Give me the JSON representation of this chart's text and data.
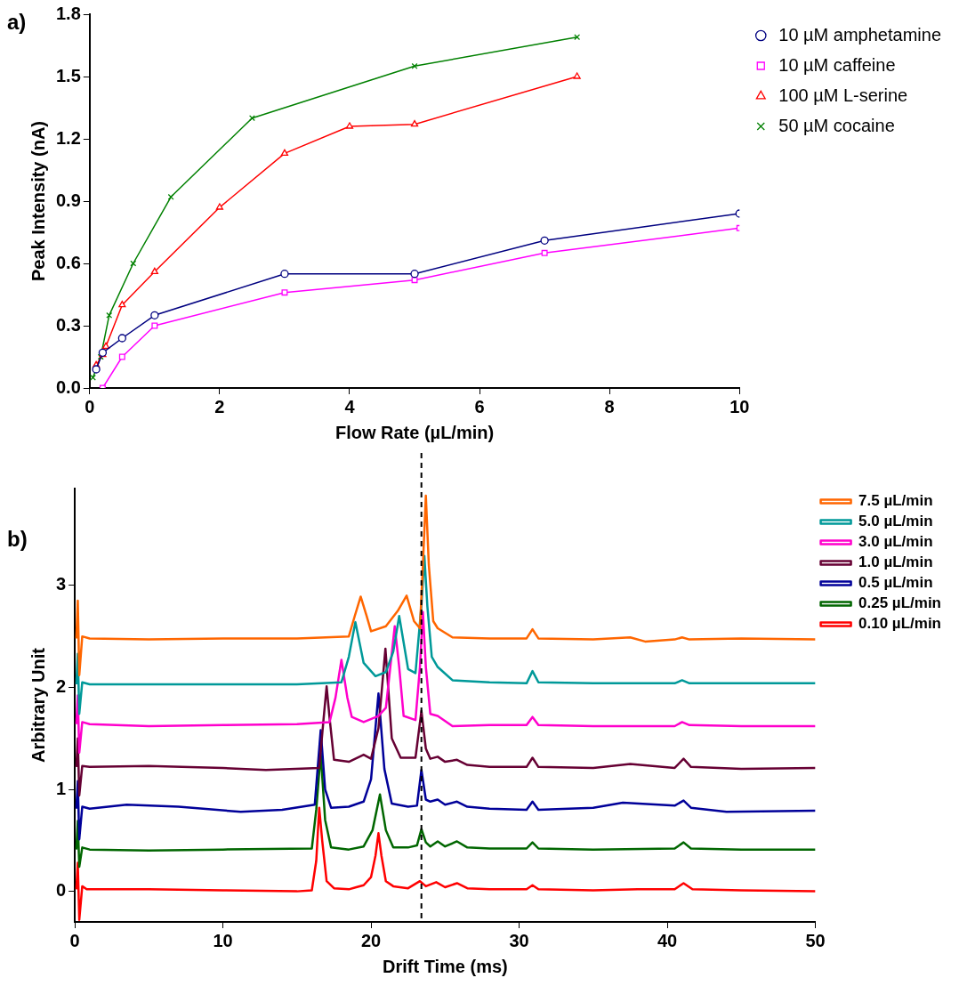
{
  "chart_data": [
    {
      "type": "line",
      "title": "a)",
      "xlabel": "Flow Rate (µL/min)",
      "ylabel": "Peak Intensity (nA)",
      "xlim": [
        0,
        10
      ],
      "ylim": [
        0,
        1.8
      ],
      "xticks": [
        0,
        2,
        4,
        6,
        8,
        10
      ],
      "yticks": [
        {
          "value": 0,
          "label": "0.0"
        },
        {
          "value": 0.3,
          "label": "0.3"
        },
        {
          "value": 0.6,
          "label": "0.6"
        },
        {
          "value": 0.9,
          "label": "0.9"
        },
        {
          "value": 1.2,
          "label": "1.2"
        },
        {
          "value": 1.5,
          "label": "1.5"
        },
        {
          "value": 1.8,
          "label": "1.8"
        }
      ],
      "grid": false,
      "legend": "top right",
      "line_style": "solid",
      "series": [
        {
          "name": "10 µM amphetamine",
          "color": "#000080",
          "marker": "circle",
          "x": [
            0.1,
            0.2,
            0.5,
            1,
            3,
            5,
            7,
            10
          ],
          "values": [
            0.09,
            0.17,
            0.24,
            0.35,
            0.55,
            0.55,
            0.71,
            0.84
          ]
        },
        {
          "name": "10 µM caffeine",
          "color": "#ff00ff",
          "marker": "square",
          "x": [
            0.2,
            0.5,
            1,
            3,
            5,
            7,
            10
          ],
          "values": [
            0,
            0.15,
            0.3,
            0.46,
            0.52,
            0.65,
            0.77
          ]
        },
        {
          "name": "100 µM L-serine",
          "color": "#ff0000",
          "marker": "triangle",
          "x": [
            0.1,
            0.2,
            0.25,
            0.5,
            1,
            2,
            3,
            4,
            5,
            7.5
          ],
          "values": [
            0.11,
            0.16,
            0.2,
            0.4,
            0.56,
            0.87,
            1.13,
            1.26,
            1.27,
            1.5
          ]
        },
        {
          "name": "50 µM cocaine",
          "color": "#008000",
          "marker": "cross",
          "x": [
            0.05,
            0.17,
            0.3,
            0.67,
            1.25,
            2.5,
            5,
            7.5
          ],
          "values": [
            0.05,
            0.15,
            0.35,
            0.6,
            0.92,
            1.3,
            1.55,
            1.69
          ]
        }
      ]
    },
    {
      "type": "line",
      "title": "b)",
      "xlabel": "Drift Time (ms)",
      "ylabel": "Arbitrary Unit",
      "xlim": [
        0,
        50
      ],
      "ylim": [
        -0.3,
        3.95
      ],
      "xticks": [
        0,
        10,
        20,
        30,
        40,
        50
      ],
      "yticks": [
        0,
        1,
        2,
        3
      ],
      "grid": false,
      "legend": "top right",
      "marker": "none",
      "line_style": "solid",
      "ref_lines": [
        {
          "axis": "x",
          "value": 23.4,
          "color": "#000000",
          "line_style": "dashed"
        }
      ],
      "series": [
        {
          "name": "7.5 µL/min",
          "color": "#ff6600",
          "x": [
            0.1,
            0.2,
            0.3,
            0.5,
            1,
            5,
            10,
            15,
            18.5,
            18.9,
            19.3,
            19.7,
            20,
            21,
            21.8,
            22.4,
            22.9,
            23.3,
            23.5,
            23.7,
            23.9,
            24.2,
            24.5,
            25.5,
            28,
            30.5,
            30.9,
            31.3,
            35,
            37.5,
            38.5,
            40.5,
            41,
            41.5,
            45,
            50
          ],
          "values": [
            2.48,
            2.85,
            2.12,
            2.5,
            2.48,
            2.47,
            2.48,
            2.48,
            2.5,
            2.7,
            2.89,
            2.7,
            2.55,
            2.6,
            2.75,
            2.9,
            2.65,
            2.58,
            3.2,
            3.88,
            3.2,
            2.65,
            2.58,
            2.49,
            2.48,
            2.48,
            2.57,
            2.48,
            2.47,
            2.49,
            2.45,
            2.47,
            2.49,
            2.47,
            2.48,
            2.47
          ]
        },
        {
          "name": "5.0 µL/min",
          "color": "#009999",
          "x": [
            0.1,
            0.2,
            0.3,
            0.5,
            1,
            5,
            10,
            15,
            18,
            18.5,
            18.94,
            19.5,
            20.3,
            21,
            21.5,
            21.9,
            22.5,
            23,
            23.4,
            23.6,
            23.8,
            24.1,
            24.5,
            25.5,
            28,
            30.5,
            30.9,
            31.3,
            35,
            40.5,
            41,
            41.5,
            45,
            50
          ],
          "values": [
            2.03,
            2.33,
            1.74,
            2.05,
            2.03,
            2.03,
            2.03,
            2.03,
            2.05,
            2.3,
            2.64,
            2.24,
            2.11,
            2.15,
            2.35,
            2.7,
            2.18,
            2.14,
            2.8,
            3.29,
            2.8,
            2.3,
            2.2,
            2.07,
            2.05,
            2.04,
            2.16,
            2.05,
            2.04,
            2.04,
            2.07,
            2.04,
            2.04,
            2.04
          ]
        },
        {
          "name": "3.0 µL/min",
          "color": "#ff00cc",
          "x": [
            0.1,
            0.2,
            0.3,
            0.5,
            1,
            5,
            10,
            15,
            17.2,
            17.6,
            18,
            18.4,
            18.7,
            19.5,
            20.5,
            21,
            21.3,
            21.6,
            21.9,
            22.2,
            23,
            23.3,
            23.5,
            23.7,
            24,
            24.5,
            25.5,
            28,
            30.5,
            30.9,
            31.3,
            35,
            40.5,
            41,
            41.5,
            45,
            50
          ],
          "values": [
            1.64,
            1.92,
            1.36,
            1.66,
            1.64,
            1.62,
            1.63,
            1.64,
            1.66,
            1.9,
            2.27,
            1.9,
            1.71,
            1.66,
            1.72,
            1.8,
            2.2,
            2.6,
            2.2,
            1.72,
            1.68,
            2.2,
            2.74,
            2.2,
            1.74,
            1.72,
            1.62,
            1.63,
            1.63,
            1.71,
            1.63,
            1.62,
            1.62,
            1.66,
            1.63,
            1.62,
            1.62
          ]
        },
        {
          "name": "1.0 µL/min",
          "color": "#660033",
          "x": [
            0.1,
            0.2,
            0.3,
            0.5,
            1,
            5,
            10,
            12.9,
            16.5,
            16.8,
            17,
            17.2,
            17.5,
            18.5,
            19.5,
            20,
            20.5,
            20.97,
            21.4,
            22,
            23,
            23.4,
            23.7,
            24,
            24.5,
            25,
            25.8,
            26.5,
            28,
            30.5,
            30.9,
            31.3,
            35,
            37.5,
            40.5,
            41.1,
            41.6,
            45,
            50
          ],
          "values": [
            1.22,
            1.5,
            0.94,
            1.23,
            1.22,
            1.23,
            1.21,
            1.19,
            1.21,
            1.7,
            2.01,
            1.7,
            1.29,
            1.27,
            1.34,
            1.3,
            1.6,
            2.38,
            1.5,
            1.31,
            1.31,
            1.77,
            1.4,
            1.3,
            1.32,
            1.27,
            1.29,
            1.24,
            1.22,
            1.22,
            1.31,
            1.22,
            1.21,
            1.25,
            1.21,
            1.3,
            1.22,
            1.2,
            1.21
          ]
        },
        {
          "name": "0.5 µL/min",
          "color": "#000099",
          "x": [
            0.1,
            0.2,
            0.3,
            0.5,
            1,
            3.5,
            7,
            11.2,
            14,
            16.2,
            16.6,
            16.9,
            17.3,
            18.5,
            19.5,
            20,
            20.5,
            20.9,
            21.4,
            22.5,
            23.1,
            23.4,
            23.7,
            24,
            24.5,
            25,
            25.8,
            26.5,
            28,
            30.5,
            30.9,
            31.3,
            35,
            37,
            40.5,
            41.1,
            41.6,
            44,
            50
          ],
          "values": [
            0.81,
            1.08,
            0.51,
            0.83,
            0.81,
            0.85,
            0.83,
            0.78,
            0.8,
            0.85,
            1.58,
            1.0,
            0.82,
            0.83,
            0.88,
            1.1,
            1.94,
            1.2,
            0.86,
            0.83,
            0.84,
            1.19,
            0.9,
            0.88,
            0.9,
            0.85,
            0.88,
            0.83,
            0.81,
            0.8,
            0.88,
            0.8,
            0.82,
            0.87,
            0.84,
            0.89,
            0.82,
            0.78,
            0.79
          ]
        },
        {
          "name": "0.25 µL/min",
          "color": "#006600",
          "x": [
            0.1,
            0.2,
            0.3,
            0.5,
            1,
            5,
            10,
            16,
            16.3,
            16.6,
            16.9,
            17.3,
            18.5,
            19.5,
            20.1,
            20.6,
            21,
            21.5,
            22.5,
            23.1,
            23.4,
            23.7,
            24,
            24.5,
            25,
            25.8,
            26.5,
            28,
            30.5,
            30.9,
            31.3,
            35,
            40.5,
            41.1,
            41.6,
            45,
            50
          ],
          "values": [
            0.41,
            0.69,
            0.24,
            0.43,
            0.41,
            0.4,
            0.41,
            0.42,
            0.8,
            1.35,
            0.7,
            0.43,
            0.41,
            0.44,
            0.6,
            0.95,
            0.6,
            0.43,
            0.43,
            0.45,
            0.61,
            0.48,
            0.44,
            0.49,
            0.44,
            0.49,
            0.43,
            0.42,
            0.42,
            0.48,
            0.42,
            0.41,
            0.42,
            0.48,
            0.42,
            0.41,
            0.41
          ]
        },
        {
          "name": "0.10 µL/min",
          "color": "#ff0000",
          "x": [
            0.1,
            0.2,
            0.3,
            0.5,
            0.8,
            5,
            10,
            15,
            16,
            16.3,
            16.5,
            16.7,
            17,
            17.5,
            18.5,
            19,
            19.5,
            20,
            20.3,
            20.5,
            20.7,
            21,
            21.5,
            22.5,
            23.3,
            23.7,
            24.4,
            25,
            25.8,
            26.5,
            28,
            30.5,
            30.9,
            31.3,
            35,
            38,
            40.5,
            41.1,
            41.7,
            45,
            50
          ],
          "values": [
            0.02,
            0.28,
            -0.28,
            0.05,
            0.02,
            0.02,
            0.01,
            0,
            0.01,
            0.3,
            0.82,
            0.5,
            0.1,
            0.03,
            0.02,
            0.04,
            0.06,
            0.14,
            0.35,
            0.57,
            0.35,
            0.1,
            0.05,
            0.03,
            0.1,
            0.05,
            0.09,
            0.04,
            0.08,
            0.03,
            0.02,
            0.02,
            0.06,
            0.02,
            0.01,
            0.02,
            0.02,
            0.08,
            0.02,
            0.01,
            0
          ]
        }
      ]
    }
  ]
}
